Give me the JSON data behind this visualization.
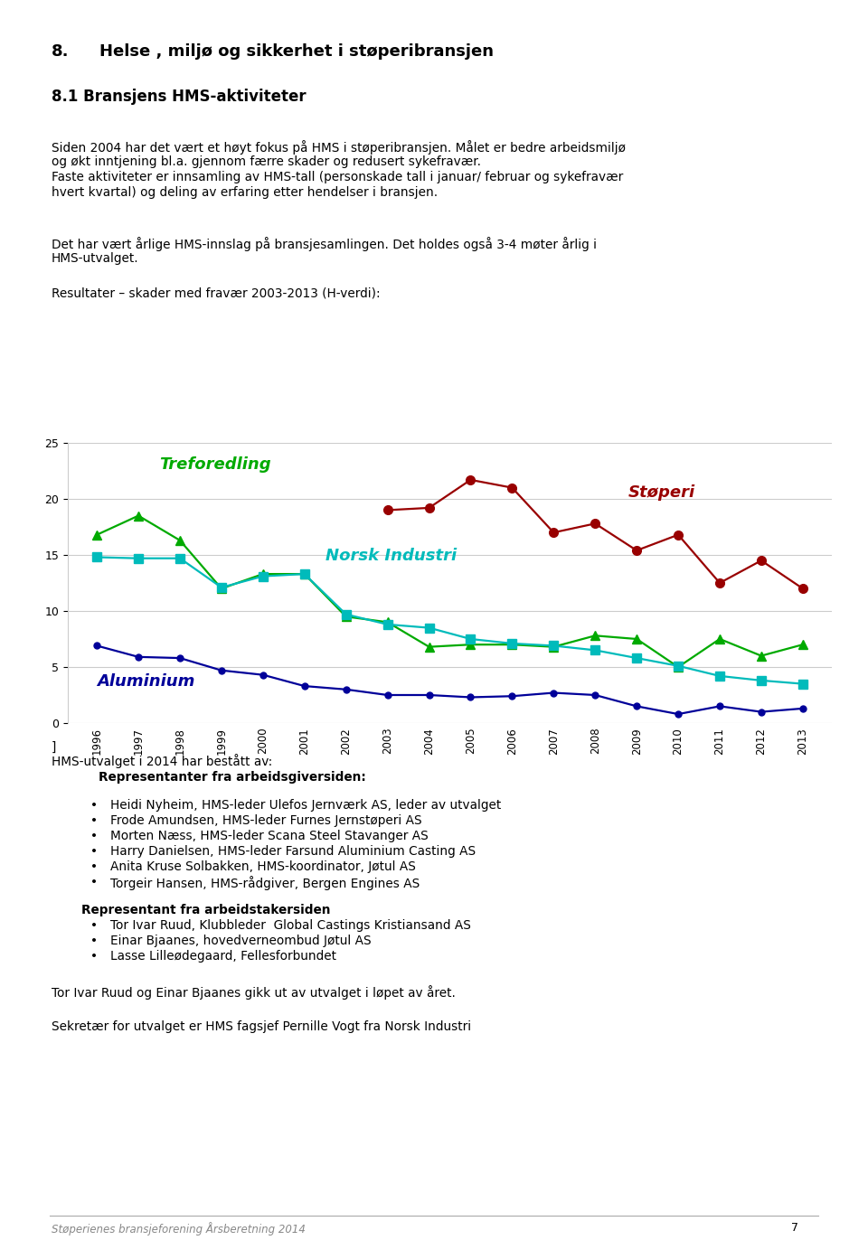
{
  "page_title": "8.    Helse , miljø og sikkerhet i støperibransjen",
  "section_title": "8.1 Bransjens HMS-aktiviteter",
  "para1_lines": [
    "Siden 2004 har det vært et høyt fokus på HMS i støperibransjen. Målet er bedre arbeidsmiljø",
    "og økt inntjening bl.a. gjennom færre skader og redusert sykefravær.",
    "Faste aktiviteter er innsamling av HMS-tall (personskade tall i januar/ februar og sykefravær",
    "hvert kvartal) og deling av erfaring etter hendelser i bransjen."
  ],
  "para2_lines": [
    "Det har vært årlige HMS-innslag på bransjesamlingen. Det holdes også 3-4 møter årlig i",
    "HMS-utvalget."
  ],
  "chart_subtitle": "Resultater – skader med fravær 2003-2013 (H-verdi):",
  "years": [
    1996,
    1997,
    1998,
    1999,
    2000,
    2001,
    2002,
    2003,
    2004,
    2005,
    2006,
    2007,
    2008,
    2009,
    2010,
    2011,
    2012,
    2013
  ],
  "treforedling": [
    16.8,
    18.5,
    16.3,
    12.0,
    13.3,
    13.3,
    9.5,
    9.0,
    6.8,
    7.0,
    7.0,
    6.8,
    7.8,
    7.5,
    5.0,
    7.5,
    6.0,
    7.0
  ],
  "norsk_industri": [
    14.8,
    14.7,
    14.7,
    12.1,
    13.1,
    13.3,
    9.7,
    8.8,
    8.5,
    7.5,
    7.1,
    6.9,
    6.5,
    5.8,
    5.1,
    4.2,
    3.8,
    3.5
  ],
  "aluminium": [
    6.9,
    5.9,
    5.8,
    4.7,
    4.3,
    3.3,
    3.0,
    2.5,
    2.5,
    2.3,
    2.4,
    2.7,
    2.5,
    1.5,
    0.8,
    1.5,
    1.0,
    1.3
  ],
  "stoperi": [
    null,
    null,
    null,
    null,
    null,
    null,
    null,
    19.0,
    19.2,
    21.7,
    21.0,
    17.0,
    17.8,
    15.4,
    16.8,
    12.5,
    14.5,
    12.0
  ],
  "treforedling_color": "#00aa00",
  "norsk_industri_color": "#00bbbb",
  "aluminium_color": "#000099",
  "stoperi_color": "#990000",
  "ylim": [
    0,
    25
  ],
  "yticks": [
    0,
    5,
    10,
    15,
    20,
    25
  ],
  "page_footer": "Støperienes bransjeforening Årsberetning 2014",
  "page_number": "7",
  "bottom_line0": "]",
  "bottom_line1": "HMS-utvalget i 2014 har bestått av:",
  "bottom_bold1": "    Representanter fra arbeidsgiversiden:",
  "bullet_list1": [
    "Heidi Nyheim, HMS-leder Ulefos Jernværk AS, leder av utvalget",
    "Frode Amundsen, HMS-leder Furnes Jernstøperi AS",
    "Morten Næss, HMS-leder Scana Steel Stavanger AS",
    "Harry Danielsen, HMS-leder Farsund Aluminium Casting AS",
    "Anita Kruse Solbakken, HMS-koordinator, Jøtul AS",
    "Torgeir Hansen, HMS-rådgiver, Bergen Engines AS"
  ],
  "bottom_bold2": "Representant fra arbeidstakersiden",
  "bullet_list2": [
    "Tor Ivar Ruud, Klubbleder  Global Castings Kristiansand AS",
    "Einar Bjaanes, hovedverneombud Jøtul AS",
    "Lasse Lilleødegaard, Fellesforbundet"
  ],
  "para_bottom1": "Tor Ivar Ruud og Einar Bjaanes gikk ut av utvalget i løpet av året.",
  "para_bottom2": "Sekretær for utvalget er HMS fagsjef Pernille Vogt fra Norsk Industri"
}
